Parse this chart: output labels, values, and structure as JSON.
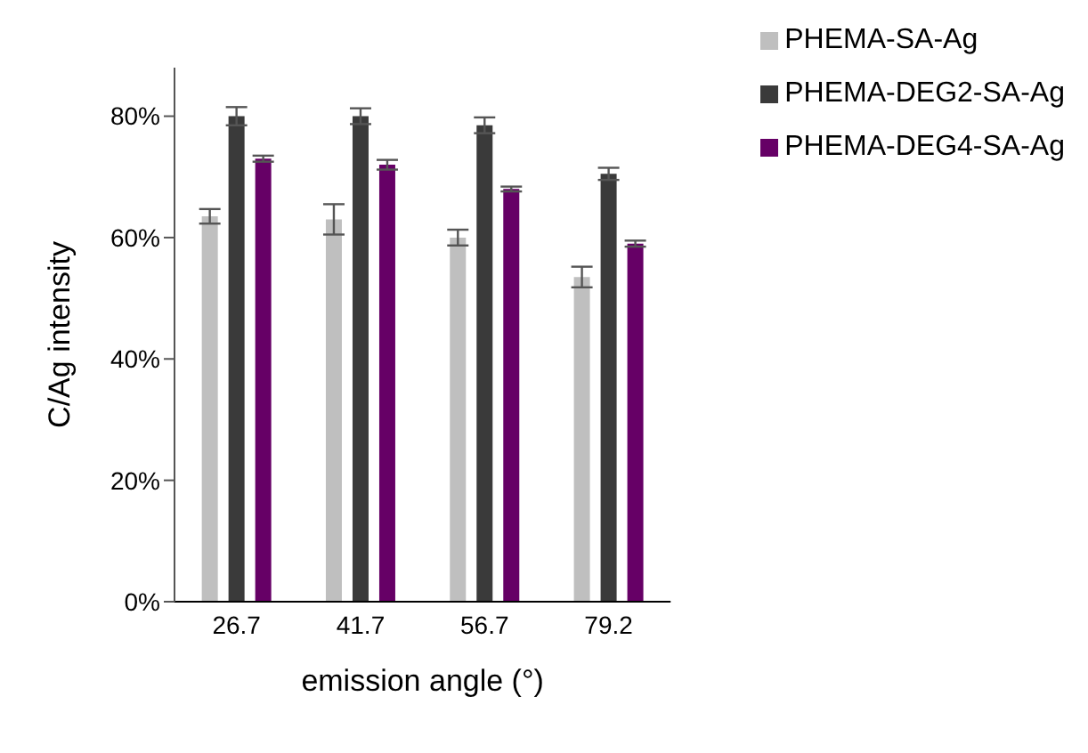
{
  "chart_data": {
    "type": "bar",
    "xlabel": "emission angle (°)",
    "ylabel": "C/Ag intensity",
    "categories": [
      "26.7",
      "41.7",
      "56.7",
      "79.2"
    ],
    "series": [
      {
        "name": "PHEMA-SA-Ag",
        "color": "#bfbfbf",
        "values": [
          63.5,
          63,
          60,
          53.5
        ],
        "errors": [
          1.2,
          2.5,
          1.3,
          1.7
        ]
      },
      {
        "name": "PHEMA-DEG2-SA-Ag",
        "color": "#3a3a3a",
        "values": [
          80,
          80,
          78.5,
          70.5
        ],
        "errors": [
          1.5,
          1.3,
          1.3,
          1
        ]
      },
      {
        "name": "PHEMA-DEG4-SA-Ag",
        "color": "#660066",
        "values": [
          73,
          72,
          68,
          59
        ],
        "errors": [
          0.5,
          0.8,
          0.4,
          0.5
        ]
      }
    ],
    "ylim": [
      0,
      88
    ],
    "yticks": [
      {
        "value": 0,
        "label": "0%"
      },
      {
        "value": 20,
        "label": "20%"
      },
      {
        "value": 40,
        "label": "40%"
      },
      {
        "value": 60,
        "label": "60%"
      },
      {
        "value": 80,
        "label": "80%"
      }
    ],
    "grid": false,
    "legend": "top right"
  }
}
